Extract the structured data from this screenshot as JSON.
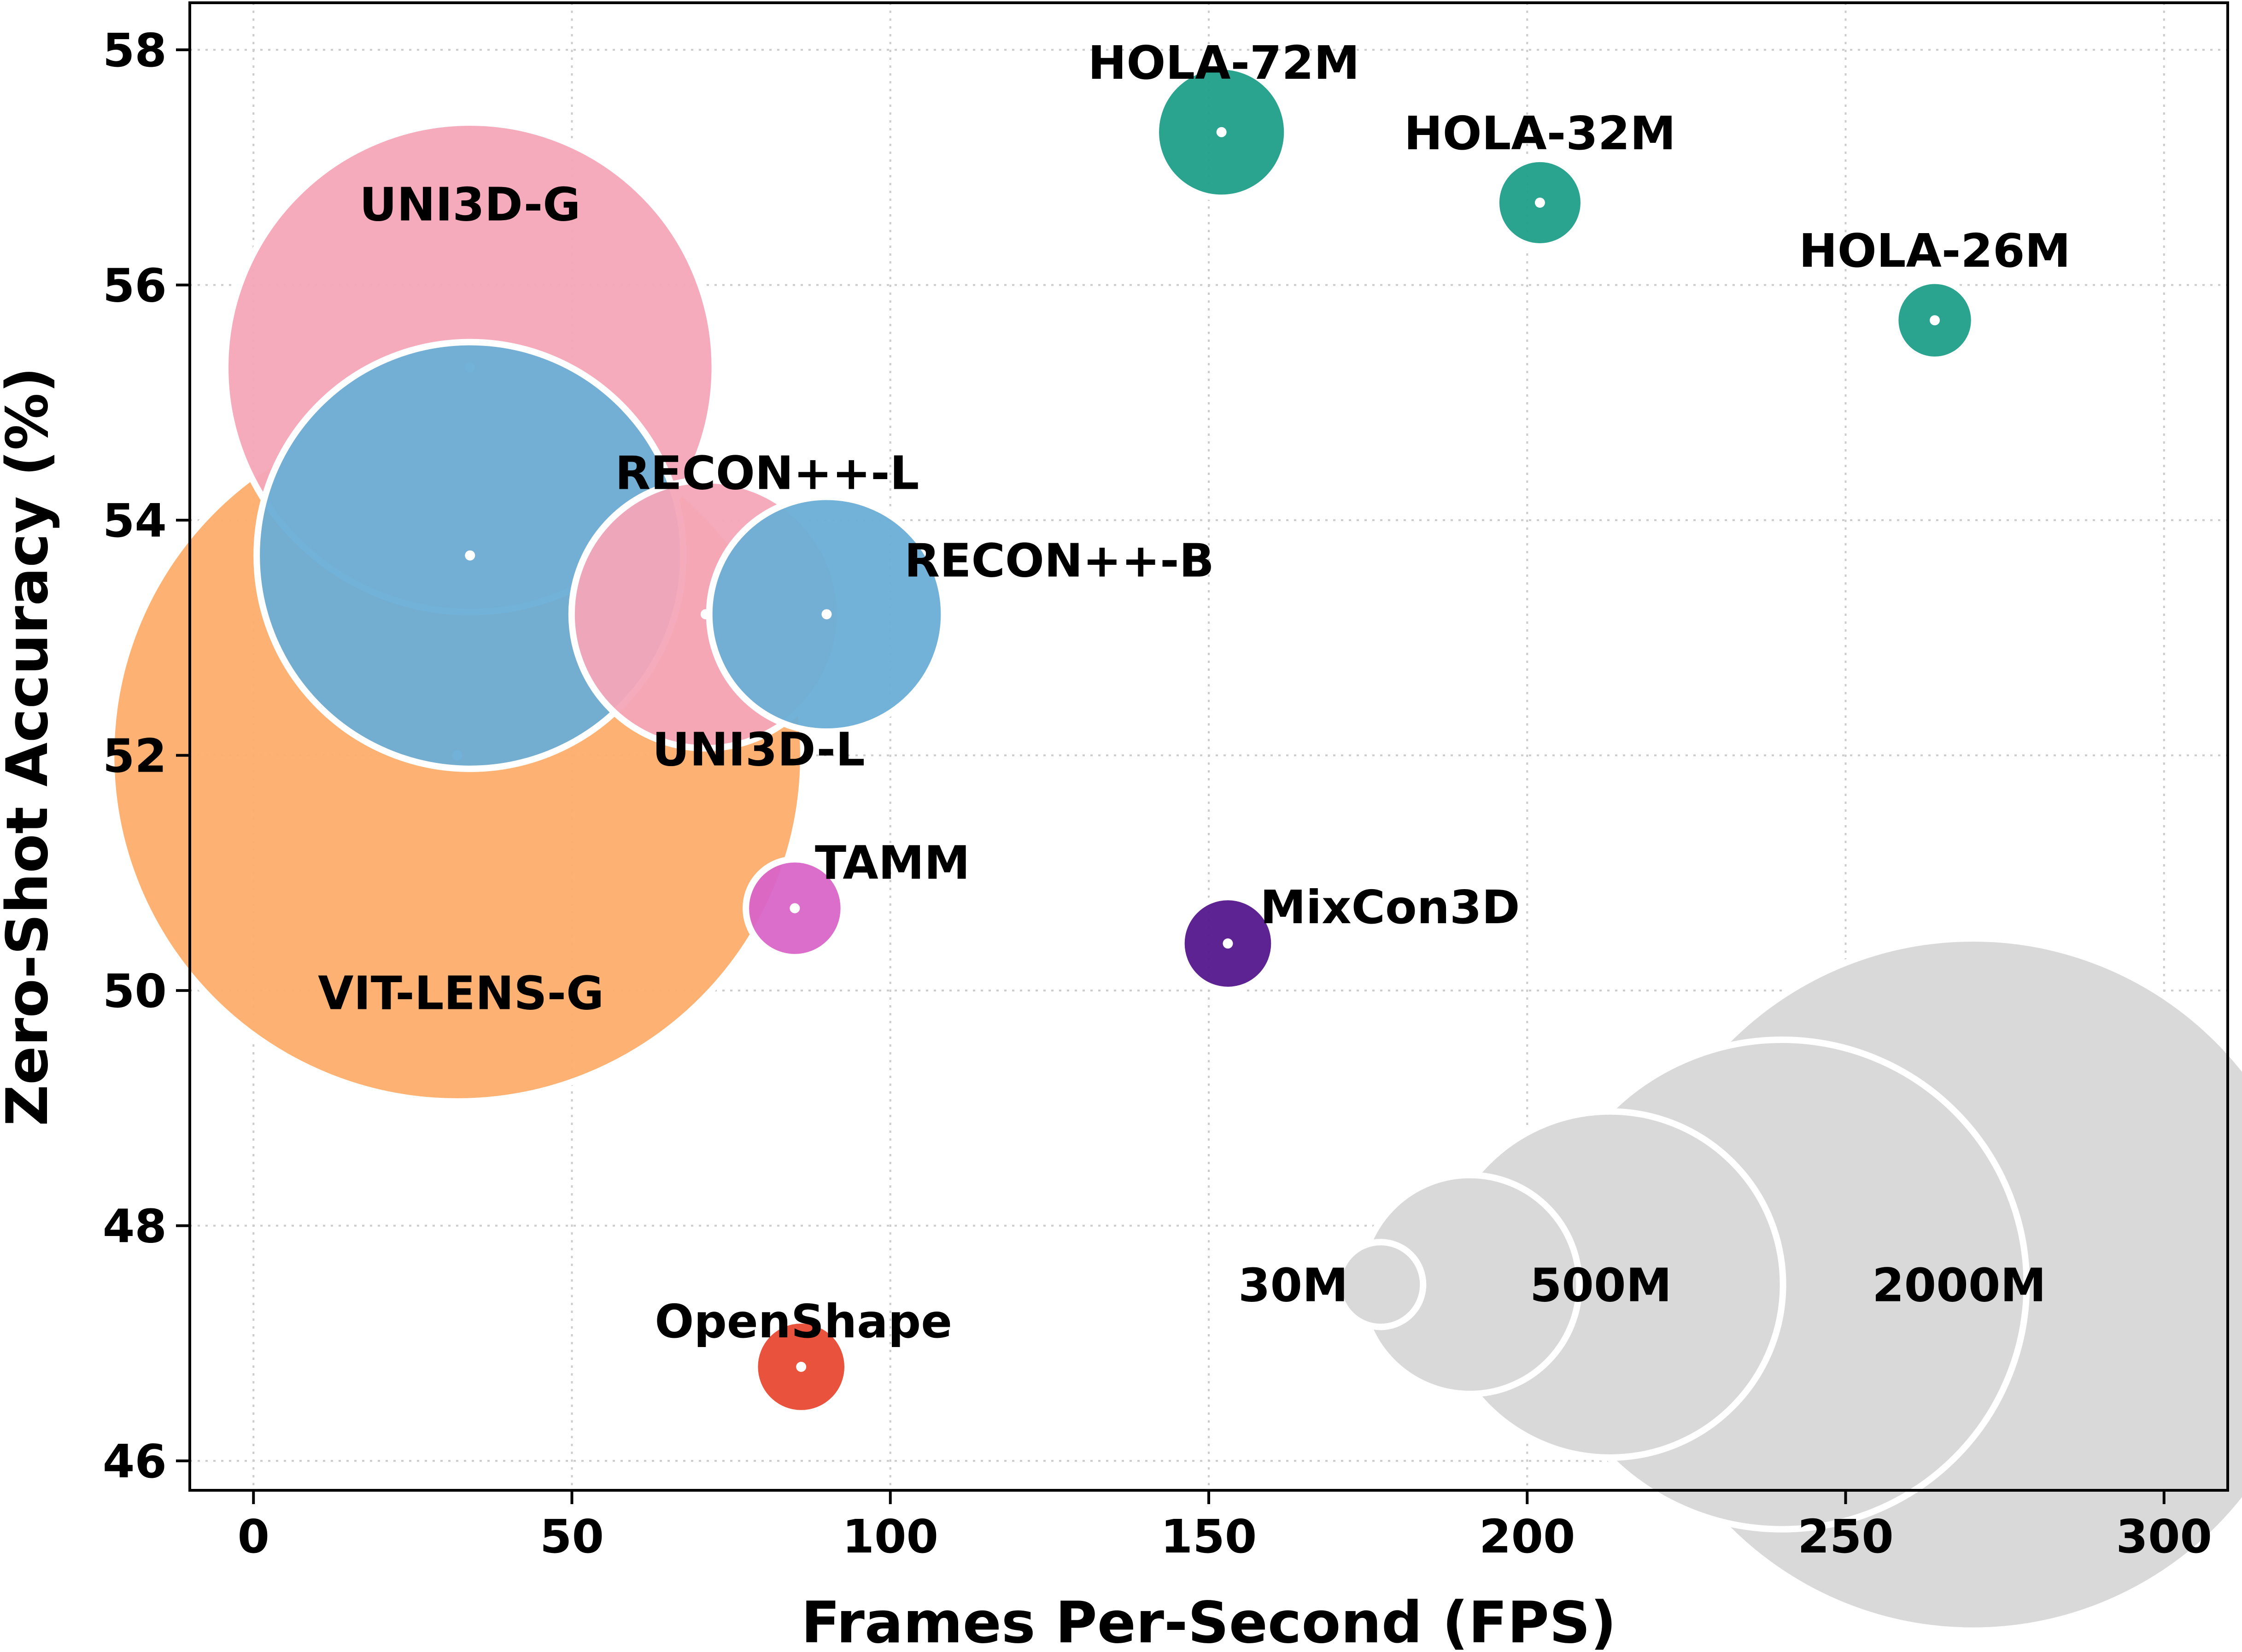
{
  "chart_data": {
    "type": "scatter",
    "xlabel": "Frames Per-Second (FPS)",
    "ylabel": "Zero-Shot Accuracy (%)",
    "xlim": [
      -10,
      310
    ],
    "ylim": [
      45.75,
      58.4
    ],
    "xticks": [
      "0",
      "50",
      "100",
      "150",
      "200",
      "250",
      "300"
    ],
    "yticks": [
      "46",
      "48",
      "50",
      "52",
      "54",
      "56",
      "58"
    ],
    "grid": true,
    "marker_size": "parameter count",
    "points": [
      {
        "label": "VIT-LENS-G",
        "x": 32,
        "y": 52.0,
        "size_m": 2000,
        "color": "#fdae6b"
      },
      {
        "label": "UNI3D-G",
        "x": 34,
        "y": 55.3,
        "size_m": 1000,
        "color": "#f4a6b8"
      },
      {
        "label": "RECON++-L",
        "x": 34,
        "y": 53.7,
        "size_m": 760,
        "color": "#6baed6"
      },
      {
        "label": "UNI3D-L",
        "x": 71,
        "y": 53.2,
        "size_m": 300,
        "color": "#f4a6b8"
      },
      {
        "label": "RECON++-B",
        "x": 90,
        "y": 53.2,
        "size_m": 230,
        "color": "#6baed6"
      },
      {
        "label": "TAMM",
        "x": 85,
        "y": 50.7,
        "size_m": 40,
        "color": "#d965c8"
      },
      {
        "label": "MixCon3D",
        "x": 153,
        "y": 50.4,
        "size_m": 36,
        "color": "#54178d"
      },
      {
        "label": "OpenShape",
        "x": 86,
        "y": 46.8,
        "size_m": 36,
        "color": "#e84a33"
      },
      {
        "label": "HOLA-72M",
        "x": 152,
        "y": 57.3,
        "size_m": 72,
        "color": "#1f9e89"
      },
      {
        "label": "HOLA-32M",
        "x": 202,
        "y": 56.7,
        "size_m": 32,
        "color": "#1f9e89"
      },
      {
        "label": "HOLA-26M",
        "x": 264,
        "y": 55.7,
        "size_m": 26,
        "color": "#1f9e89"
      }
    ],
    "size_legend": [
      {
        "label": "30M",
        "x": 177,
        "y": 47.5,
        "size_m": 30
      },
      {
        "label": "",
        "x": 191,
        "y": 47.5,
        "size_m": 200
      },
      {
        "label": "500M",
        "x": 213,
        "y": 47.5,
        "size_m": 500
      },
      {
        "label": "",
        "x": 240,
        "y": 47.5,
        "size_m": 1000
      },
      {
        "label": "2000M",
        "x": 270,
        "y": 47.5,
        "size_m": 2000
      }
    ],
    "legend_color": "#d9d9d9"
  }
}
